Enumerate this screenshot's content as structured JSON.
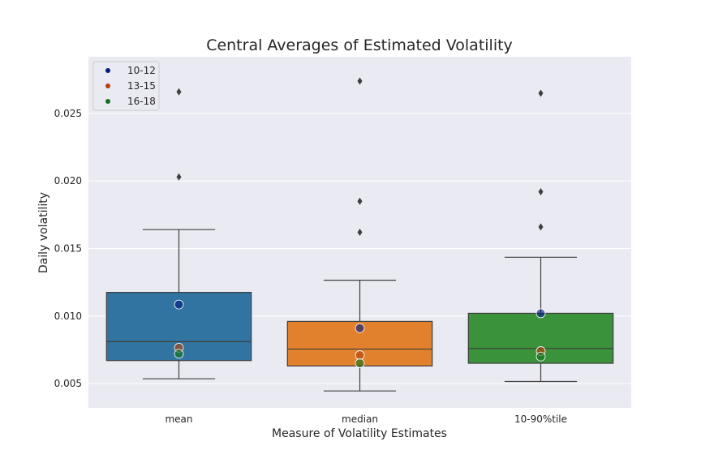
{
  "chart_data": {
    "type": "box",
    "title": "Central Averages of Estimated Volatility",
    "xlabel": "Measure of Volatility Estimates",
    "ylabel": "Daily volatility",
    "ylim": [
      0.0032,
      0.0292
    ],
    "yticks": [
      0.005,
      0.01,
      0.015,
      0.02,
      0.025
    ],
    "ytick_labels": [
      "0.005",
      "0.010",
      "0.015",
      "0.020",
      "0.025"
    ],
    "grid": true,
    "legend_position": "top-left",
    "categories": [
      "mean",
      "median",
      "10-90%tile"
    ],
    "boxes": [
      {
        "category": "mean",
        "color": "#3274a1",
        "whisker_low": 0.00535,
        "q1": 0.0067,
        "median": 0.0081,
        "q3": 0.01175,
        "whisker_high": 0.0164,
        "outliers": [
          0.0203,
          0.0266
        ]
      },
      {
        "category": "median",
        "color": "#e1812c",
        "whisker_low": 0.00445,
        "q1": 0.0063,
        "median": 0.00755,
        "q3": 0.0096,
        "whisker_high": 0.01265,
        "outliers": [
          0.0162,
          0.0185,
          0.0274
        ]
      },
      {
        "category": "10-90%tile",
        "color": "#3a923a",
        "whisker_low": 0.00515,
        "q1": 0.0065,
        "median": 0.0076,
        "q3": 0.0102,
        "whisker_high": 0.01435,
        "outliers": [
          0.0166,
          0.0192,
          0.0265
        ]
      }
    ],
    "series": [
      {
        "name": "10-12",
        "color": "#001c7f",
        "values": [
          0.01085,
          0.0091,
          0.0102
        ]
      },
      {
        "name": "13-15",
        "color": "#b1400d",
        "values": [
          0.00765,
          0.0071,
          0.0074
        ]
      },
      {
        "name": "16-18",
        "color": "#12711c",
        "values": [
          0.0072,
          0.0065,
          0.007
        ]
      }
    ]
  }
}
